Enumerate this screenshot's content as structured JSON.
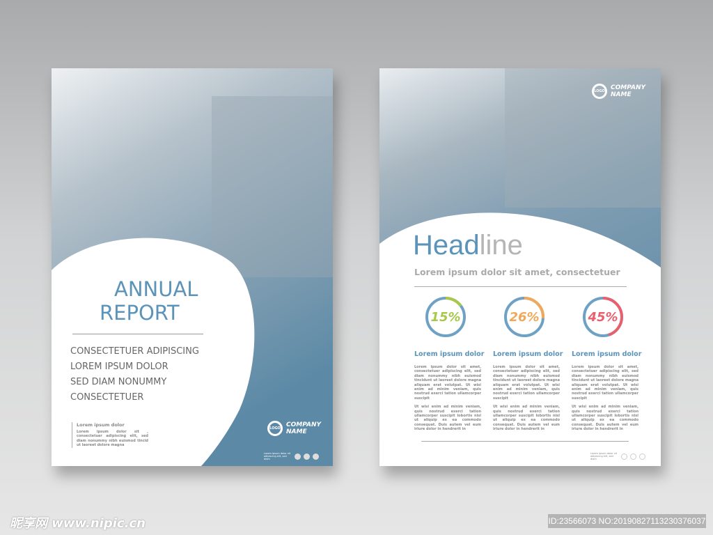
{
  "cover": {
    "title_line1": "ANNUAL",
    "title_line2": "REPORT",
    "lines": [
      "CONSECTETUER ADIPISCING",
      "LOREM IPSUM DOLOR",
      "SED DIAM NONUMMY",
      "CONSECTETUER"
    ],
    "note_title": "Lorem ipsum dolor",
    "note_body": "Lorem ipsum dolor sit , consectetuer adipiscing elit, sed diam nonummy nibh euismod tincid ut laoreet dolore magna",
    "logo": "LOGO",
    "company": "COMPANY",
    "company2": "NAME",
    "footer": "Lorem ipsum dolor sit adipiscing elit, sed diam"
  },
  "inner": {
    "logo": "LOGO",
    "company": "COMPANY",
    "company2": "NAME",
    "headline_a": "Head",
    "headline_b": "line",
    "subtitle": "Lorem ipsum dolor sit amet, consectetuer",
    "stats": [
      {
        "value": 15,
        "label": "15%",
        "color": "#a8c84a"
      },
      {
        "value": 26,
        "label": "26%",
        "color": "#f0a95a"
      },
      {
        "value": 45,
        "label": "45%",
        "color": "#e8606e"
      }
    ],
    "ring_color": "#6fa1c4",
    "columns": [
      {
        "title": "Lorem ipsum dolor",
        "p1": "Lorem ipsum dolor sit amet, consectetuer adipiscing elit, sed diam nonummy nibh euismod tincidunt ut laoreet dolore magna aliquam erat volutpat. Ut wisi enim ad minim veniam, quis nostrud exerci tation ullamcorper suscipit",
        "p2": "Ut wisi enim ad minim veniam, quis nostrud exerci tation ullamcorper suscipit lobortis nisl ut aliquip ex ea commodo consequat. Duis autem vel eum iriure dolor in hendrerit in"
      },
      {
        "title": "Lorem ipsum dolor",
        "p1": "Lorem ipsum dolor sit amet, consectetuer adipiscing elit, sed diam nonummy nibh euismod tincidunt ut laoreet dolore magna aliquam erat volutpat. Ut wisi enim ad minim veniam, quis nostrud exerci tation ullamcorper suscipit",
        "p2": "Ut wisi enim ad minim veniam, quis nostrud exerci tation ullamcorper suscipit lobortis nisl ut aliquip ex ea commodo consequat. Duis autem vel eum iriure dolor in hendrerit in"
      },
      {
        "title": "Lorem ipsum dolor",
        "p1": "Lorem ipsum dolor sit amet, consectetuer adipiscing elit, sed diam nonummy nibh euismod tincidunt ut laoreet dolore magna aliquam erat volutpat. Ut wisi enim ad minim veniam, quis nostrud exerci tation ullamcorper suscipit",
        "p2": "Ut wisi enim ad minim veniam, quis nostrud exerci tation ullamcorper suscipit lobortis nisl ut aliquip ex ea commodo consequat. Duis autem vel eum iriure dolor in hendrerit in"
      }
    ],
    "footer": "Lorem ipsum dolor sit adipiscing elit, sed diam"
  },
  "watermark": {
    "brand": "昵享网",
    "url": "www.nipic.cn"
  },
  "image_id": "ID:23566073 NO:20190827113230376037"
}
